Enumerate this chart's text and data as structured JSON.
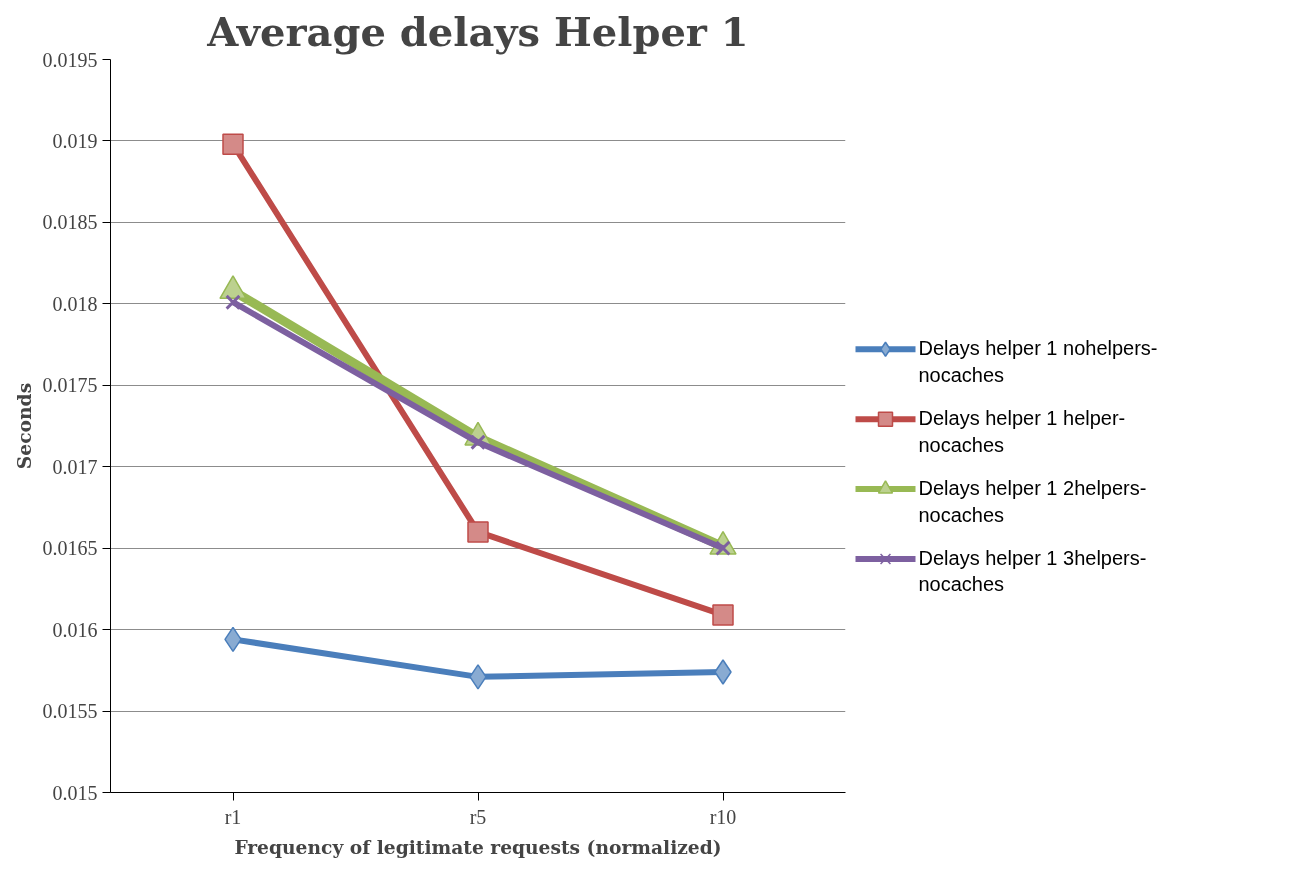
{
  "chart_data": {
    "type": "line",
    "title": "Average delays Helper 1",
    "xlabel": "Frequency of legitimate requests (normalized)",
    "ylabel": "Seconds",
    "categories": [
      "r1",
      "r5",
      "r10"
    ],
    "series": [
      {
        "name": "Delays helper 1 nohelpers-nocaches",
        "color": "#4a7ebb",
        "marker": "diamond",
        "values": [
          0.01594,
          0.01571,
          0.01574
        ]
      },
      {
        "name": "Delays helper 1 helper-nocaches",
        "color": "#be4b48",
        "marker": "square",
        "values": [
          0.01898,
          0.0166,
          0.01609
        ]
      },
      {
        "name": "Delays helper 1 2helpers-nocaches",
        "color": "#98b954",
        "marker": "triangle",
        "values": [
          0.01808,
          0.01718,
          0.01651
        ]
      },
      {
        "name": "Delays helper 1 3helpers-nocaches",
        "color": "#7d60a0",
        "marker": "cross",
        "values": [
          0.01801,
          0.01715,
          0.0165
        ]
      }
    ],
    "ylim": [
      0.015,
      0.0195
    ],
    "yticks": [
      0.015,
      0.0155,
      0.016,
      0.0165,
      0.017,
      0.0175,
      0.018,
      0.0185,
      0.019,
      0.0195
    ],
    "grid": "y",
    "legend": "right",
    "line_style": "solid"
  }
}
